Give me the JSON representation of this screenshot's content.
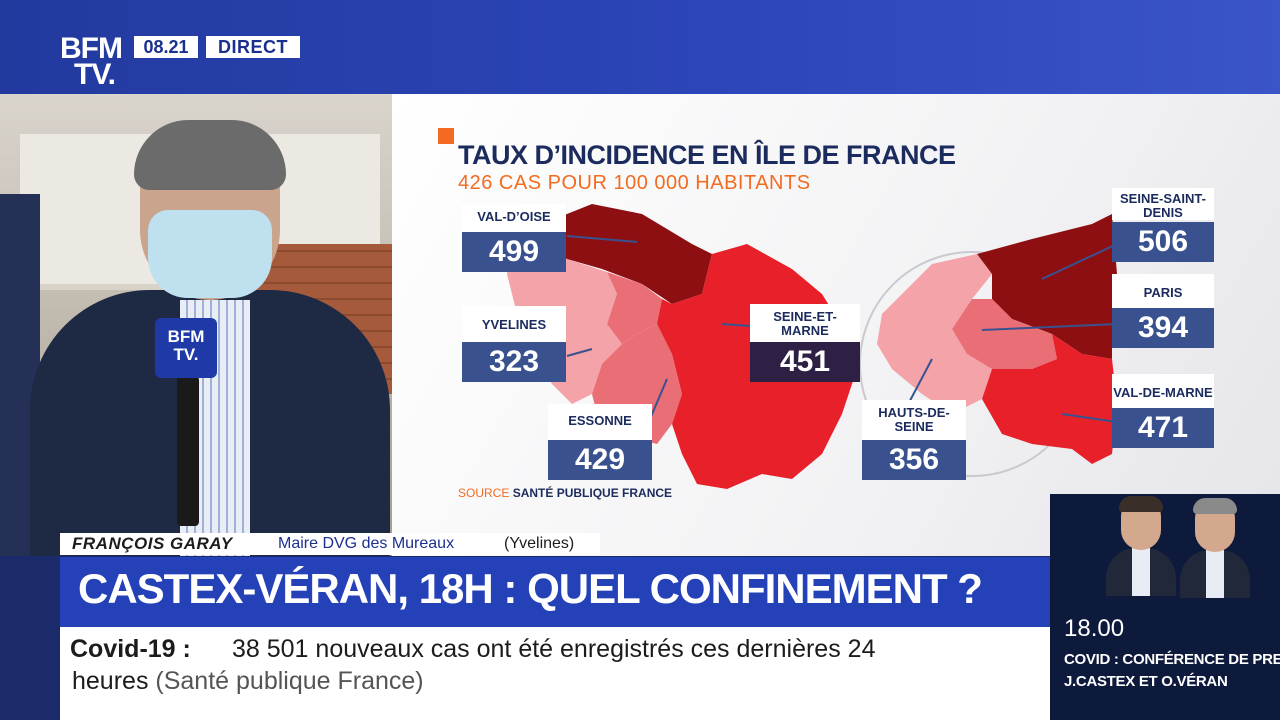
{
  "channel": {
    "logo_line1": "BFM",
    "logo_line2": "TV.",
    "time": "08.21",
    "live": "DIRECT"
  },
  "mic_flag": "BFM\nTV.",
  "infographic": {
    "title": "TAUX D’INCIDENCE EN ÎLE DE FRANCE",
    "subtitle": "426 CAS POUR 100 000 HABITANTS",
    "source_prefix": "SOURCE",
    "source_name": "SANTÉ PUBLIQUE FRANCE",
    "departments": [
      {
        "name": "VAL-D’OISE",
        "value": "499"
      },
      {
        "name": "YVELINES",
        "value": "323"
      },
      {
        "name": "ESSONNE",
        "value": "429"
      },
      {
        "name": "SEINE-ET-MARNE",
        "value": "451"
      },
      {
        "name": "SEINE-SAINT-DENIS",
        "value": "506"
      },
      {
        "name": "PARIS",
        "value": "394"
      },
      {
        "name": "VAL-DE-MARNE",
        "value": "471"
      },
      {
        "name": "HAUTS-DE-SEINE",
        "value": "356"
      }
    ],
    "colors": {
      "lowest": "#f4a3a8",
      "low": "#ea6e75",
      "mid": "#e8202a",
      "high": "#8e0f12",
      "label_box": "#39528f",
      "accent": "#f26b21"
    }
  },
  "speaker": {
    "name": "FRANÇOIS GARAY",
    "role": "Maire DVG des Mureaux",
    "region": "(Yvelines)"
  },
  "headline": "CASTEX-VÉRAN, 18H : QUEL CONFINEMENT ?",
  "ticker": {
    "label": "Covid-19  :",
    "line1": "38 501 nouveaux cas ont été enregistrés ces dernières 24",
    "line2": "heures",
    "source": "(Santé publique France)"
  },
  "next": {
    "time": "18.00",
    "line1": "COVID : CONFÉRENCE DE PRESSE",
    "line2": "J.CASTEX ET O.VÉRAN"
  }
}
